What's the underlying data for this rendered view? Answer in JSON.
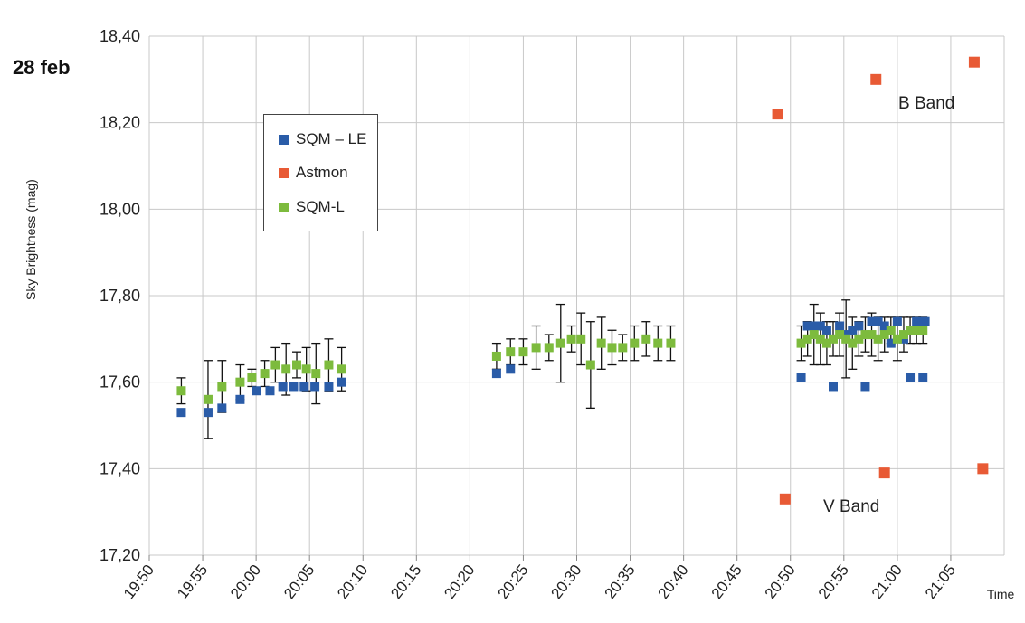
{
  "date_label": "28 feb",
  "ylabel": "Sky Brightness (mag)",
  "xlabel": "Time",
  "annotations": {
    "b_band": "B Band",
    "v_band": "V Band"
  },
  "legend": [
    {
      "label": "SQM – LE",
      "color": "#2a5ca8"
    },
    {
      "label": "Astmon",
      "color": "#e85a35"
    },
    {
      "label": "SQM-L",
      "color": "#7dbb3d"
    }
  ],
  "chart_data": {
    "type": "scatter",
    "ylim": [
      17.2,
      18.4
    ],
    "y_ticks": [
      "17,20",
      "17,40",
      "17,60",
      "17,80",
      "18,00",
      "18,20",
      "18,40"
    ],
    "x_ticks": [
      "19:50",
      "19:55",
      "20:00",
      "20:05",
      "20:10",
      "20:15",
      "20:20",
      "20:25",
      "20:30",
      "20:35",
      "20:40",
      "20:45",
      "20:50",
      "20:55",
      "21:00",
      "21:05"
    ],
    "x_range_minutes": [
      0,
      80
    ],
    "grid": true,
    "legend_position": "upper-left",
    "series": [
      {
        "name": "SQM – LE",
        "color": "#2a5ca8",
        "points": [
          {
            "t": "19:53",
            "y": 17.53
          },
          {
            "t": "19:55.5",
            "y": 17.53
          },
          {
            "t": "19:56.8",
            "y": 17.54
          },
          {
            "t": "19:58.5",
            "y": 17.56
          },
          {
            "t": "20:00",
            "y": 17.58
          },
          {
            "t": "20:01.3",
            "y": 17.58
          },
          {
            "t": "20:02.5",
            "y": 17.59
          },
          {
            "t": "20:03.5",
            "y": 17.59
          },
          {
            "t": "20:04.5",
            "y": 17.59
          },
          {
            "t": "20:05.5",
            "y": 17.59
          },
          {
            "t": "20:06.8",
            "y": 17.59
          },
          {
            "t": "20:08",
            "y": 17.6
          },
          {
            "t": "20:22.5",
            "y": 17.62
          },
          {
            "t": "20:23.8",
            "y": 17.63
          },
          {
            "t": "20:51",
            "y": 17.61
          },
          {
            "t": "20:51.6",
            "y": 17.73
          },
          {
            "t": "20:52.2",
            "y": 17.73
          },
          {
            "t": "20:52.8",
            "y": 17.73
          },
          {
            "t": "20:53.4",
            "y": 17.72
          },
          {
            "t": "20:54",
            "y": 17.59
          },
          {
            "t": "20:54.6",
            "y": 17.73
          },
          {
            "t": "20:55.2",
            "y": 17.71
          },
          {
            "t": "20:55.8",
            "y": 17.72
          },
          {
            "t": "20:56.4",
            "y": 17.73
          },
          {
            "t": "20:57",
            "y": 17.59
          },
          {
            "t": "20:57.6",
            "y": 17.74
          },
          {
            "t": "20:58.2",
            "y": 17.74
          },
          {
            "t": "20:58.8",
            "y": 17.73
          },
          {
            "t": "20:59.4",
            "y": 17.69
          },
          {
            "t": "21:00",
            "y": 17.74
          },
          {
            "t": "21:00.6",
            "y": 17.7
          },
          {
            "t": "21:01.2",
            "y": 17.61
          },
          {
            "t": "21:01.8",
            "y": 17.74
          },
          {
            "t": "21:02.4",
            "y": 17.61
          },
          {
            "t": "21:02.6",
            "y": 17.74
          }
        ]
      },
      {
        "name": "Astmon",
        "color": "#e85a35",
        "points": [
          {
            "t": "20:48.8",
            "y": 18.22
          },
          {
            "t": "20:58",
            "y": 18.3
          },
          {
            "t": "21:07.2",
            "y": 18.34
          },
          {
            "t": "20:49.5",
            "y": 17.33
          },
          {
            "t": "20:58.8",
            "y": 17.39
          },
          {
            "t": "21:08",
            "y": 17.4
          }
        ]
      },
      {
        "name": "SQM-L",
        "color": "#7dbb3d",
        "points": [
          {
            "t": "19:53",
            "y": 17.58,
            "err": 0.03
          },
          {
            "t": "19:55.5",
            "y": 17.56,
            "err": 0.09
          },
          {
            "t": "19:56.8",
            "y": 17.59,
            "err": 0.06
          },
          {
            "t": "19:58.5",
            "y": 17.6,
            "err": 0.04
          },
          {
            "t": "19:59.6",
            "y": 17.61,
            "err": 0.02
          },
          {
            "t": "20:00.8",
            "y": 17.62,
            "err": 0.03
          },
          {
            "t": "20:01.8",
            "y": 17.64,
            "err": 0.04
          },
          {
            "t": "20:02.8",
            "y": 17.63,
            "err": 0.06
          },
          {
            "t": "20:03.8",
            "y": 17.64,
            "err": 0.03
          },
          {
            "t": "20:04.7",
            "y": 17.63,
            "err": 0.05
          },
          {
            "t": "20:05.6",
            "y": 17.62,
            "err": 0.07
          },
          {
            "t": "20:06.8",
            "y": 17.64,
            "err": 0.06
          },
          {
            "t": "20:08",
            "y": 17.63,
            "err": 0.05
          },
          {
            "t": "20:22.5",
            "y": 17.66,
            "err": 0.03
          },
          {
            "t": "20:23.8",
            "y": 17.67,
            "err": 0.03
          },
          {
            "t": "20:25",
            "y": 17.67,
            "err": 0.03
          },
          {
            "t": "20:26.2",
            "y": 17.68,
            "err": 0.05
          },
          {
            "t": "20:27.4",
            "y": 17.68,
            "err": 0.03
          },
          {
            "t": "20:28.5",
            "y": 17.69,
            "err": 0.09
          },
          {
            "t": "20:29.5",
            "y": 17.7,
            "err": 0.03
          },
          {
            "t": "20:30.4",
            "y": 17.7,
            "err": 0.06
          },
          {
            "t": "20:31.3",
            "y": 17.64,
            "err": 0.1
          },
          {
            "t": "20:32.3",
            "y": 17.69,
            "err": 0.06
          },
          {
            "t": "20:33.3",
            "y": 17.68,
            "err": 0.04
          },
          {
            "t": "20:34.3",
            "y": 17.68,
            "err": 0.03
          },
          {
            "t": "20:35.4",
            "y": 17.69,
            "err": 0.04
          },
          {
            "t": "20:36.5",
            "y": 17.7,
            "err": 0.04
          },
          {
            "t": "20:37.6",
            "y": 17.69,
            "err": 0.04
          },
          {
            "t": "20:38.8",
            "y": 17.69,
            "err": 0.04
          },
          {
            "t": "20:51",
            "y": 17.69,
            "err": 0.04
          },
          {
            "t": "20:51.6",
            "y": 17.7,
            "err": 0.04
          },
          {
            "t": "20:52.2",
            "y": 17.71,
            "err": 0.07
          },
          {
            "t": "20:52.8",
            "y": 17.7,
            "err": 0.06
          },
          {
            "t": "20:53.4",
            "y": 17.69,
            "err": 0.05
          },
          {
            "t": "20:54",
            "y": 17.7,
            "err": 0.04
          },
          {
            "t": "20:54.6",
            "y": 17.71,
            "err": 0.05
          },
          {
            "t": "20:55.2",
            "y": 17.7,
            "err": 0.09
          },
          {
            "t": "20:55.8",
            "y": 17.69,
            "err": 0.06
          },
          {
            "t": "20:56.4",
            "y": 17.7,
            "err": 0.04
          },
          {
            "t": "20:57",
            "y": 17.71,
            "err": 0.04
          },
          {
            "t": "20:57.6",
            "y": 17.71,
            "err": 0.05
          },
          {
            "t": "20:58.2",
            "y": 17.7,
            "err": 0.05
          },
          {
            "t": "20:58.8",
            "y": 17.71,
            "err": 0.04
          },
          {
            "t": "20:59.4",
            "y": 17.72,
            "err": 0.03
          },
          {
            "t": "21:00",
            "y": 17.7,
            "err": 0.05
          },
          {
            "t": "21:00.6",
            "y": 17.71,
            "err": 0.04
          },
          {
            "t": "21:01.2",
            "y": 17.72,
            "err": 0.03
          },
          {
            "t": "21:01.8",
            "y": 17.72,
            "err": 0.03
          },
          {
            "t": "21:02.4",
            "y": 17.72,
            "err": 0.03
          }
        ]
      }
    ]
  }
}
